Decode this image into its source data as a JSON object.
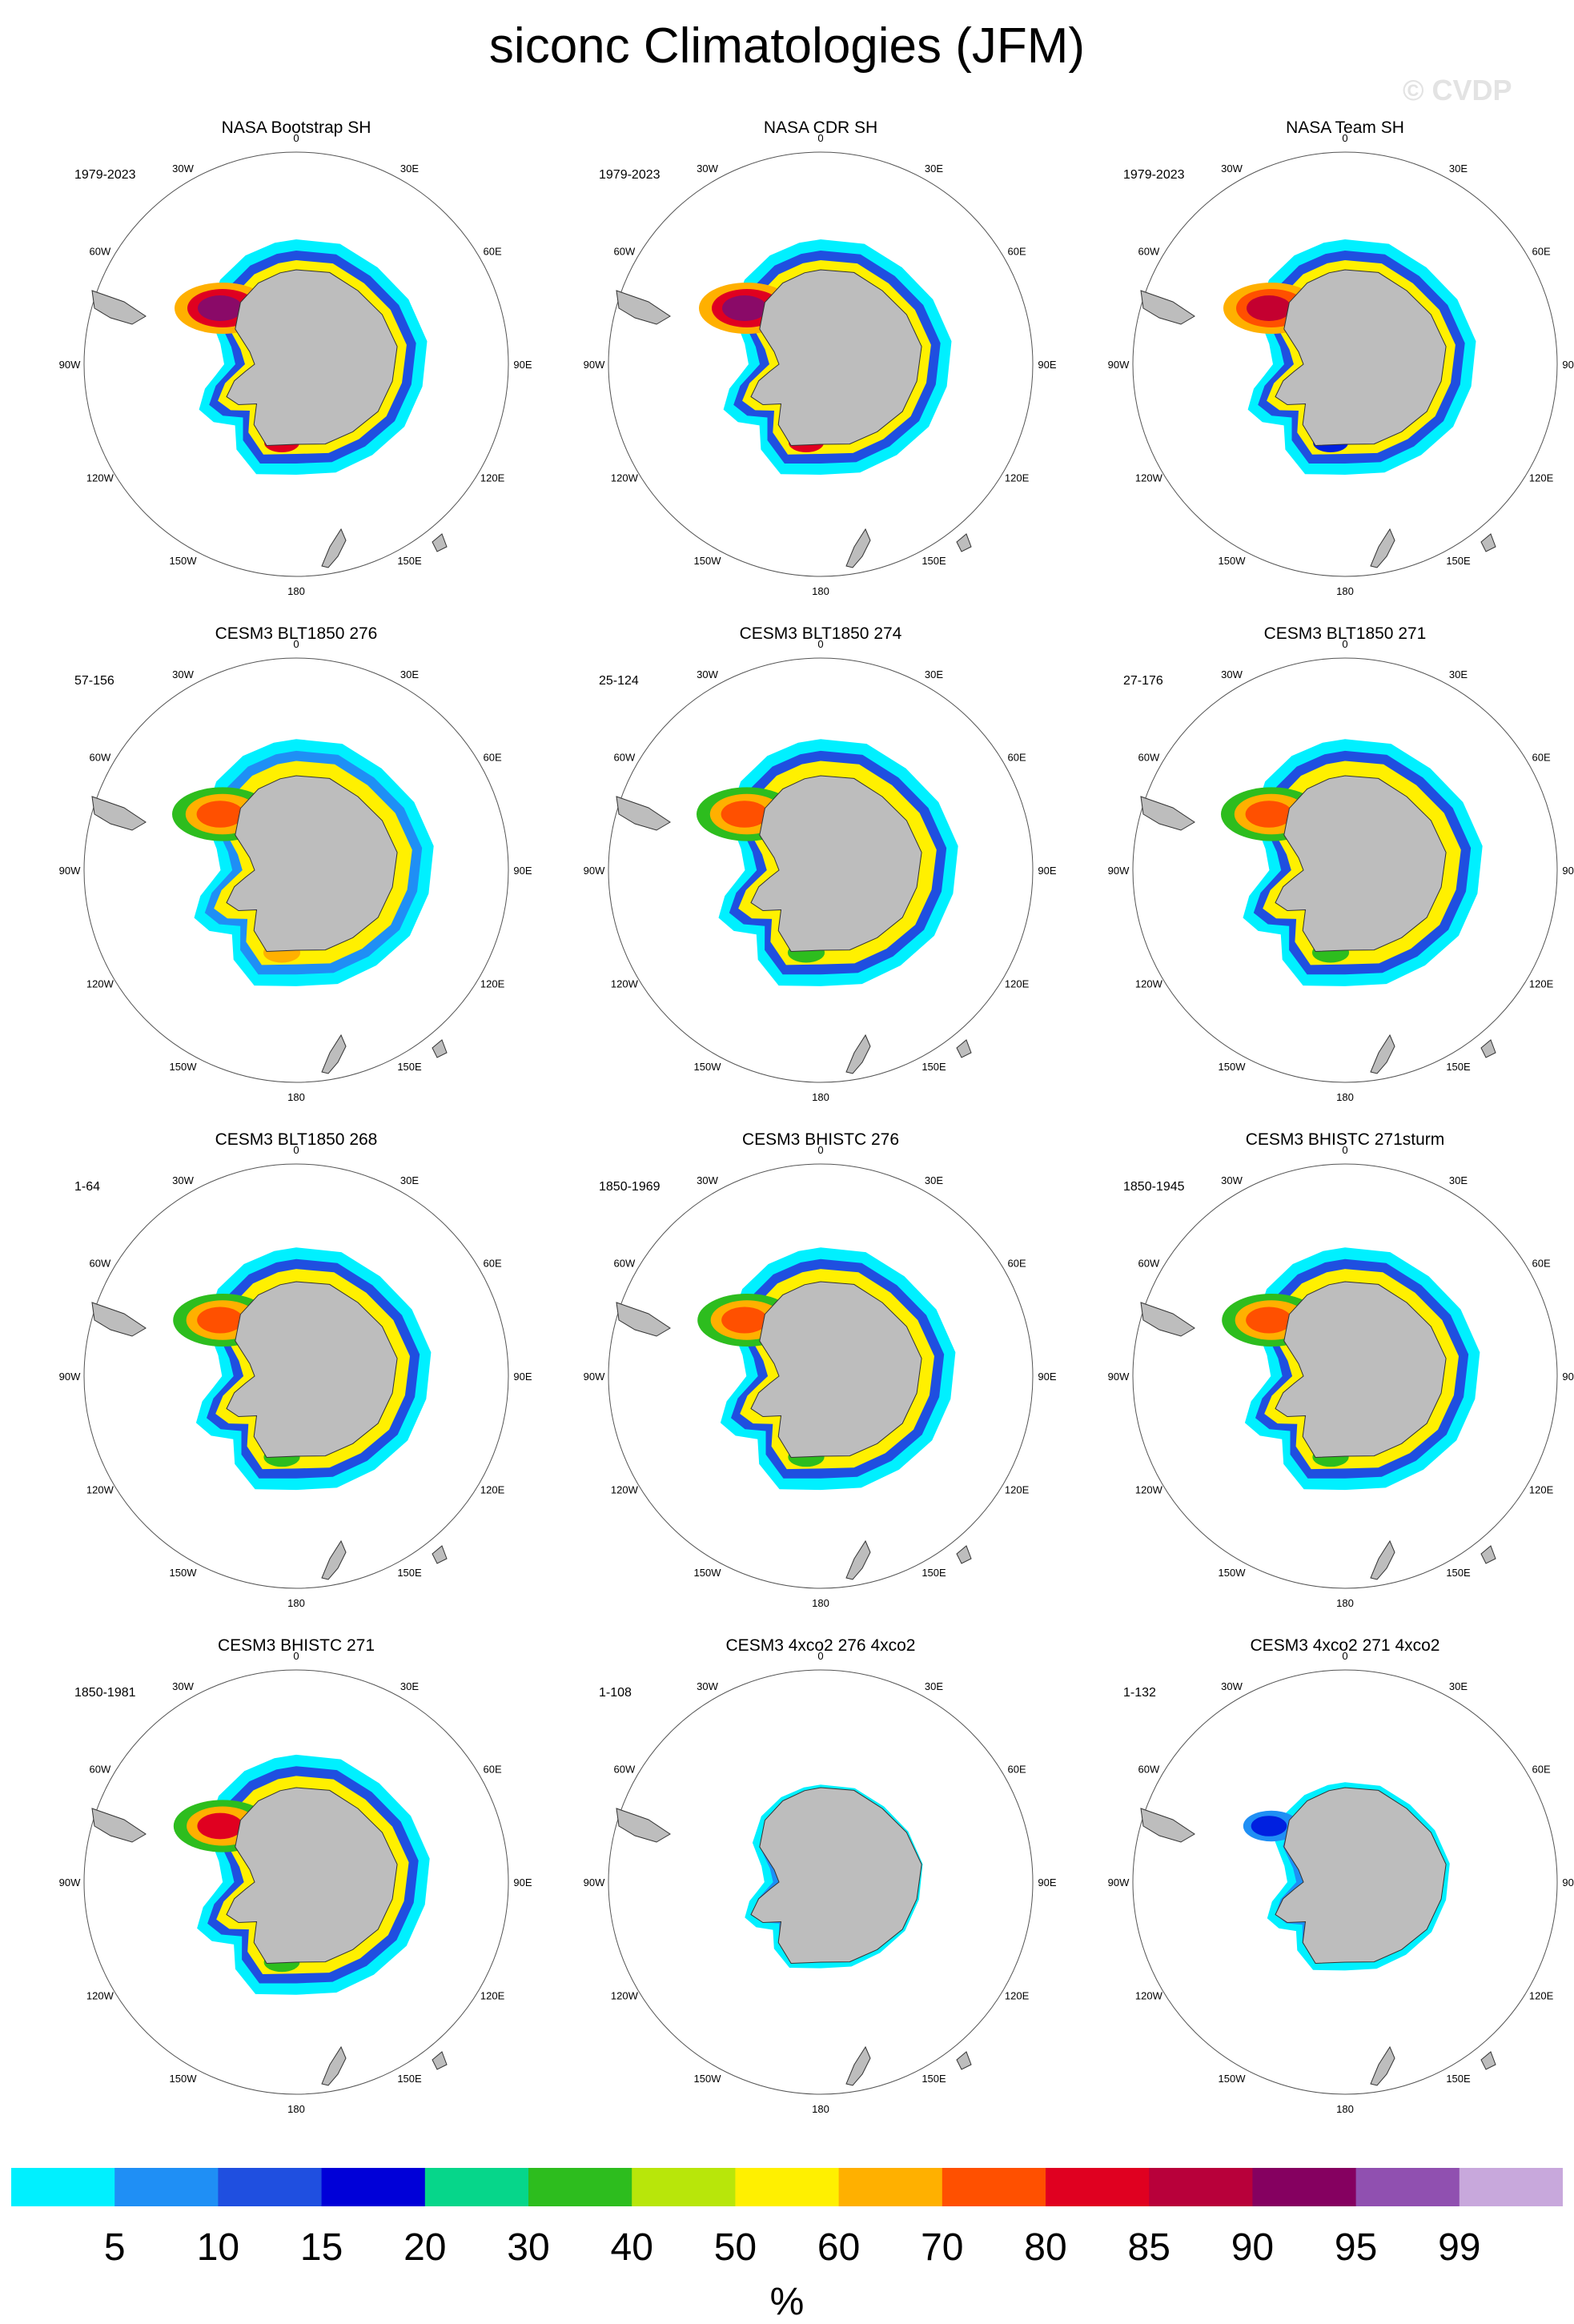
{
  "title": "siconc Climatologies (JFM)",
  "watermark": "© CVDP",
  "lon_labels": [
    "0",
    "30E",
    "60E",
    "90E",
    "120E",
    "150E",
    "180",
    "150W",
    "120W",
    "90W",
    "60W",
    "30W"
  ],
  "panels": [
    {
      "title": "NASA Bootstrap SH",
      "years": "1979-2023",
      "rim": "#1f4fe0",
      "extent": 1.0,
      "ross": "#e00020",
      "weddell_core": "#8a0a68",
      "weddell_mid": "#e00020",
      "weddell_outer": "#ffb000"
    },
    {
      "title": "NASA CDR SH",
      "years": "1979-2023",
      "rim": "#1f4fe0",
      "extent": 1.0,
      "ross": "#e00020",
      "weddell_core": "#8a0a68",
      "weddell_mid": "#e00020",
      "weddell_outer": "#ffb000"
    },
    {
      "title": "NASA Team SH",
      "years": "1979-2023",
      "rim": "#1f4fe0",
      "extent": 1.0,
      "ross": "#0020e0",
      "weddell_core": "#c40030",
      "weddell_mid": "#ff5000",
      "weddell_outer": "#ffb000"
    },
    {
      "title": "CESM3 BLT1850 276",
      "years": "57-156",
      "rim": "#1f8ff5",
      "extent": 1.05,
      "ross": "#ffb000",
      "weddell_core": "#ff5000",
      "weddell_mid": "#ffb000",
      "weddell_outer": "#2dbd1e"
    },
    {
      "title": "CESM3 BLT1850 274",
      "years": "25-124",
      "rim": "#1f4fe0",
      "extent": 1.05,
      "ross": "#2dbd1e",
      "weddell_core": "#ff5000",
      "weddell_mid": "#ffb000",
      "weddell_outer": "#2dbd1e"
    },
    {
      "title": "CESM3 BLT1850 271",
      "years": "27-176",
      "rim": "#1f4fe0",
      "extent": 1.05,
      "ross": "#2dbd1e",
      "weddell_core": "#ff5000",
      "weddell_mid": "#ffb000",
      "weddell_outer": "#2dbd1e"
    },
    {
      "title": "CESM3 BLT1850 268",
      "years": "1-64",
      "rim": "#1f4fe0",
      "extent": 1.03,
      "ross": "#2dbd1e",
      "weddell_core": "#ff5000",
      "weddell_mid": "#ffb000",
      "weddell_outer": "#2dbd1e"
    },
    {
      "title": "CESM3 BHISTC 276",
      "years": "1850-1969",
      "rim": "#1f4fe0",
      "extent": 1.03,
      "ross": "#2dbd1e",
      "weddell_core": "#ff5000",
      "weddell_mid": "#ffb000",
      "weddell_outer": "#2dbd1e"
    },
    {
      "title": "CESM3 BHISTC 271sturm",
      "years": "1850-1945",
      "rim": "#1f4fe0",
      "extent": 1.03,
      "ross": "#2dbd1e",
      "weddell_core": "#ff5000",
      "weddell_mid": "#ffb000",
      "weddell_outer": "#2dbd1e"
    },
    {
      "title": "CESM3 BHISTC 271",
      "years": "1850-1981",
      "rim": "#1f4fe0",
      "extent": 1.02,
      "ross": "#2dbd1e",
      "weddell_core": "#e00020",
      "weddell_mid": "#ffb000",
      "weddell_outer": "#2dbd1e"
    },
    {
      "title": "CESM3 4xco2 276 4xco2",
      "years": "1-108",
      "rim": "#1f8ff5",
      "extent": 0.78,
      "ross": "#0020e0",
      "weddell_core": "",
      "weddell_mid": "",
      "weddell_outer": ""
    },
    {
      "title": "CESM3 4xco2 271 4xco2",
      "years": "1-132",
      "rim": "#1f8ff5",
      "extent": 0.8,
      "ross": "#0020e0",
      "weddell_core": "#0020e0",
      "weddell_mid": "#1f8ff5",
      "weddell_outer": ""
    }
  ],
  "colorbar": {
    "colors": [
      "#00f0ff",
      "#1f8ff5",
      "#1f4fe0",
      "#0000d8",
      "#06d68a",
      "#2dbd1e",
      "#b8e60a",
      "#fff000",
      "#ffb000",
      "#ff5000",
      "#e00020",
      "#b8003a",
      "#850060",
      "#9050b0",
      "#c8a8dc"
    ],
    "tick_labels": [
      "5",
      "10",
      "15",
      "20",
      "30",
      "40",
      "50",
      "60",
      "70",
      "80",
      "85",
      "90",
      "95",
      "99"
    ],
    "unit": "%"
  },
  "chart_data": {
    "type": "heatmap",
    "title": "siconc Climatologies (JFM)",
    "projection": "south polar stereographic",
    "season": "JFM",
    "variable": "siconc",
    "units": "%",
    "panels": [
      {
        "name": "NASA Bootstrap SH",
        "period": "1979-2023"
      },
      {
        "name": "NASA CDR SH",
        "period": "1979-2023"
      },
      {
        "name": "NASA Team SH",
        "period": "1979-2023"
      },
      {
        "name": "CESM3 BLT1850 276",
        "period": "57-156"
      },
      {
        "name": "CESM3 BLT1850 274",
        "period": "25-124"
      },
      {
        "name": "CESM3 BLT1850 271",
        "period": "27-176"
      },
      {
        "name": "CESM3 BLT1850 268",
        "period": "1-64"
      },
      {
        "name": "CESM3 BHISTC 276",
        "period": "1850-1969"
      },
      {
        "name": "CESM3 BHISTC 271sturm",
        "period": "1850-1945"
      },
      {
        "name": "CESM3 BHISTC 271",
        "period": "1850-1981"
      },
      {
        "name": "CESM3 4xco2 276 4xco2",
        "period": "1-108"
      },
      {
        "name": "CESM3 4xco2 271 4xco2",
        "period": "1-132"
      }
    ],
    "contour_levels": [
      5,
      10,
      15,
      20,
      30,
      40,
      50,
      60,
      70,
      80,
      85,
      90,
      95,
      99
    ]
  }
}
